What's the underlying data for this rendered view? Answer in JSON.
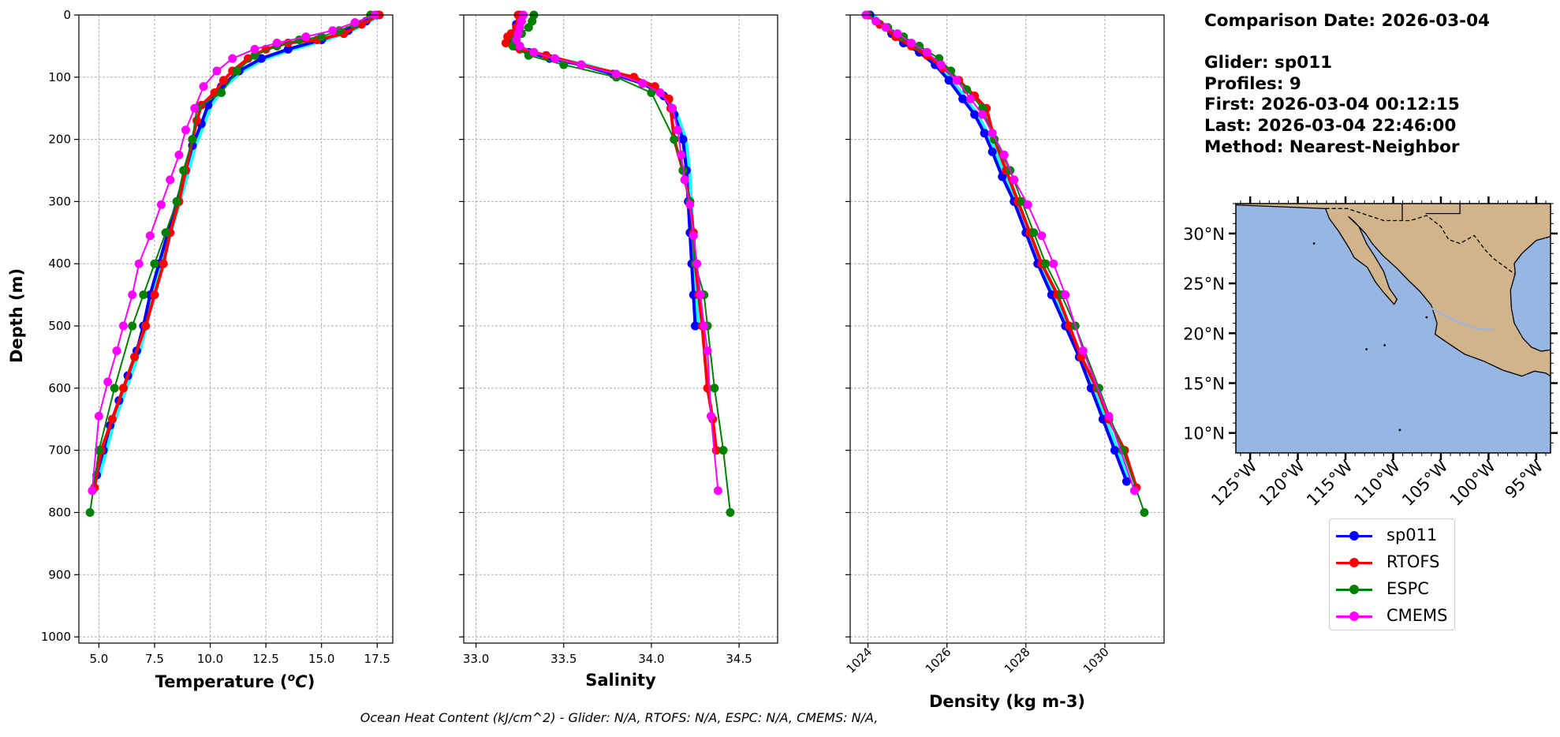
{
  "info": {
    "comparison_date": "Comparison Date: 2026-03-04",
    "glider": "Glider: sp011",
    "profiles": "Profiles: 9",
    "first": "First: 2026-03-04 00:12:15",
    "last": "Last: 2026-03-04 22:46:00",
    "method": "Method: Nearest-Neighbor"
  },
  "footer": "Ocean Heat Content (kJ/cm^2) - Glider: N/A,  RTOFS: N/A,  ESPC: N/A,  CMEMS: N/A,",
  "legend": [
    {
      "name": "sp011",
      "color": "#0000ff"
    },
    {
      "name": "RTOFS",
      "color": "#ff0000"
    },
    {
      "name": "ESPC",
      "color": "#008000"
    },
    {
      "name": "CMEMS",
      "color": "#ff00ff"
    }
  ],
  "map": {
    "ocean_color": "#97b6e1",
    "land_color": "#d2b48c",
    "lat_labels": [
      "30°N",
      "25°N",
      "20°N",
      "15°N",
      "10°N"
    ],
    "lat_values": [
      30,
      25,
      20,
      15,
      10
    ],
    "lon_labels": [
      "125°W",
      "120°W",
      "115°W",
      "110°W",
      "105°W",
      "100°W",
      "95°W"
    ],
    "lon_values": [
      -125,
      -120,
      -115,
      -110,
      -105,
      -100,
      -95
    ],
    "extent": {
      "lon_min": -126.5,
      "lon_max": -93.5,
      "lat_min": 8,
      "lat_max": 33
    }
  },
  "chart_data": [
    {
      "type": "line",
      "id": "temperature",
      "xlabel": "Temperature (°C)",
      "ylabel": "Depth (m)",
      "xlim": [
        4.1,
        18.2
      ],
      "ylim": [
        1010,
        0
      ],
      "xticks": [
        "5.0",
        "7.5",
        "10.0",
        "12.5",
        "15.0",
        "17.5"
      ],
      "xtick_values": [
        5.0,
        7.5,
        10.0,
        12.5,
        15.0,
        17.5
      ],
      "yticks": [
        "0",
        "100",
        "200",
        "300",
        "400",
        "500",
        "600",
        "700",
        "800",
        "900",
        "1000"
      ],
      "ytick_values": [
        0,
        100,
        200,
        300,
        400,
        500,
        600,
        700,
        800,
        900,
        1000
      ],
      "grid": true,
      "series": [
        {
          "name": "sp011",
          "color": "#0000ff",
          "x": [
            17.5,
            17.0,
            16.2,
            15.0,
            13.5,
            12.3,
            11.3,
            10.5,
            9.9,
            9.6,
            9.2,
            8.9,
            8.5,
            8.1,
            7.7,
            7.3,
            7.0,
            6.7,
            6.3,
            5.9,
            5.5,
            5.2,
            4.9
          ],
          "y": [
            0,
            10,
            25,
            40,
            55,
            70,
            90,
            115,
            145,
            175,
            210,
            250,
            300,
            350,
            400,
            450,
            500,
            540,
            580,
            620,
            660,
            700,
            740
          ]
        },
        {
          "name": "RTOFS",
          "color": "#ff0000",
          "x": [
            17.6,
            16.8,
            16.0,
            14.8,
            13.5,
            12.5,
            11.7,
            11.0,
            10.6,
            10.2,
            9.6,
            9.4,
            9.2,
            8.9,
            8.6,
            8.2,
            7.9,
            7.5,
            7.1,
            6.6,
            6.1,
            5.6,
            5.1,
            4.8
          ],
          "y": [
            0,
            15,
            30,
            40,
            45,
            55,
            70,
            90,
            105,
            125,
            145,
            170,
            200,
            250,
            300,
            350,
            400,
            450,
            500,
            550,
            600,
            650,
            700,
            760
          ]
        },
        {
          "name": "ESPC",
          "color": "#008000",
          "x": [
            17.2,
            16.5,
            15.8,
            15.0,
            14.0,
            13.0,
            12.0,
            11.2,
            10.5,
            9.4,
            9.2,
            8.8,
            8.5,
            8.0,
            7.5,
            7.0,
            6.5,
            5.7,
            5.0,
            4.6
          ],
          "y": [
            0,
            15,
            25,
            35,
            40,
            50,
            65,
            90,
            125,
            150,
            200,
            250,
            300,
            350,
            400,
            450,
            500,
            600,
            700,
            800
          ]
        },
        {
          "name": "CMEMS",
          "color": "#ff00ff",
          "x": [
            17.4,
            16.5,
            15.5,
            14.3,
            13.0,
            12.0,
            11.0,
            10.3,
            9.7,
            9.3,
            8.9,
            8.6,
            8.2,
            7.8,
            7.3,
            6.8,
            6.5,
            6.1,
            5.8,
            5.4,
            5.0,
            4.7
          ],
          "y": [
            0,
            12,
            25,
            35,
            45,
            55,
            70,
            90,
            115,
            150,
            185,
            225,
            265,
            305,
            355,
            400,
            450,
            500,
            540,
            590,
            645,
            765
          ]
        }
      ]
    },
    {
      "type": "line",
      "id": "salinity",
      "xlabel": "Salinity",
      "xlim": [
        32.93,
        34.72
      ],
      "ylim": [
        1010,
        0
      ],
      "xticks": [
        "33.0",
        "33.5",
        "34.0",
        "34.5"
      ],
      "xtick_values": [
        33.0,
        33.5,
        34.0,
        34.5
      ],
      "grid": true,
      "series": [
        {
          "name": "sp011",
          "color": "#0000ff",
          "x": [
            33.25,
            33.23,
            33.21,
            33.2,
            33.22,
            33.3,
            33.42,
            33.6,
            33.78,
            33.95,
            34.07,
            34.13,
            34.18,
            34.2,
            34.21,
            34.22,
            34.23,
            34.24,
            34.25
          ],
          "y": [
            0,
            15,
            30,
            40,
            50,
            60,
            70,
            80,
            95,
            110,
            130,
            160,
            200,
            250,
            300,
            350,
            400,
            450,
            500
          ]
        },
        {
          "name": "RTOFS",
          "color": "#ff0000",
          "x": [
            33.24,
            33.23,
            33.2,
            33.18,
            33.17,
            33.25,
            33.4,
            33.6,
            33.9,
            34.02,
            34.1,
            34.11,
            34.13,
            34.18,
            34.22,
            34.24,
            34.25,
            34.27,
            34.29,
            34.32,
            34.35,
            34.37
          ],
          "y": [
            0,
            20,
            30,
            35,
            45,
            55,
            65,
            80,
            100,
            115,
            135,
            150,
            200,
            250,
            300,
            350,
            400,
            450,
            500,
            600,
            650,
            700
          ]
        },
        {
          "name": "ESPC",
          "color": "#008000",
          "x": [
            33.33,
            33.32,
            33.3,
            33.26,
            33.22,
            33.21,
            33.3,
            33.5,
            33.8,
            34.0,
            34.13,
            34.18,
            34.22,
            34.25,
            34.3,
            34.32,
            34.36,
            34.41,
            34.45
          ],
          "y": [
            0,
            10,
            20,
            30,
            40,
            50,
            65,
            80,
            100,
            125,
            200,
            250,
            300,
            400,
            450,
            500,
            600,
            700,
            800
          ]
        },
        {
          "name": "CMEMS",
          "color": "#ff00ff",
          "x": [
            33.27,
            33.26,
            33.25,
            33.24,
            33.23,
            33.25,
            33.33,
            33.45,
            33.6,
            33.8,
            33.95,
            34.05,
            34.12,
            34.15,
            34.17,
            34.19,
            34.22,
            34.24,
            34.26,
            34.28,
            34.3,
            34.32,
            34.34,
            34.38
          ],
          "y": [
            0,
            10,
            20,
            30,
            40,
            50,
            60,
            70,
            80,
            95,
            110,
            125,
            150,
            185,
            225,
            265,
            305,
            355,
            400,
            450,
            500,
            540,
            645,
            765
          ]
        }
      ]
    },
    {
      "type": "line",
      "id": "density",
      "xlabel": "Density (kg m-3)",
      "xlim": [
        1023.55,
        1031.5
      ],
      "ylim": [
        1010,
        0
      ],
      "xticks": [
        "1024",
        "1026",
        "1028",
        "1030"
      ],
      "xtick_values": [
        1024,
        1026,
        1028,
        1030
      ],
      "grid": true,
      "series": [
        {
          "name": "sp011",
          "color": "#0000ff",
          "x": [
            1024.05,
            1024.3,
            1024.6,
            1024.9,
            1025.3,
            1025.7,
            1026.05,
            1026.4,
            1026.7,
            1026.95,
            1027.15,
            1027.4,
            1027.7,
            1028.0,
            1028.3,
            1028.65,
            1029.0,
            1029.35,
            1029.65,
            1029.95,
            1030.25,
            1030.55
          ],
          "y": [
            0,
            15,
            30,
            45,
            60,
            80,
            105,
            135,
            160,
            190,
            220,
            260,
            300,
            350,
            400,
            450,
            500,
            550,
            600,
            650,
            700,
            750
          ]
        },
        {
          "name": "RTOFS",
          "color": "#ff0000",
          "x": [
            1024.0,
            1024.3,
            1024.7,
            1025.1,
            1025.5,
            1025.9,
            1026.3,
            1026.7,
            1027.0,
            1027.2,
            1027.5,
            1027.8,
            1028.1,
            1028.4,
            1028.8,
            1029.1,
            1029.4,
            1029.8,
            1030.1,
            1030.5,
            1030.8
          ],
          "y": [
            0,
            15,
            35,
            50,
            65,
            85,
            105,
            130,
            150,
            200,
            250,
            300,
            350,
            400,
            450,
            500,
            550,
            600,
            650,
            700,
            760
          ]
        },
        {
          "name": "ESPC",
          "color": "#008000",
          "x": [
            1024.0,
            1024.5,
            1024.9,
            1025.3,
            1025.8,
            1026.1,
            1026.5,
            1026.9,
            1027.2,
            1027.6,
            1027.9,
            1028.2,
            1028.5,
            1028.9,
            1029.25,
            1029.85,
            1030.45,
            1031.0
          ],
          "y": [
            0,
            20,
            35,
            50,
            70,
            90,
            120,
            150,
            200,
            250,
            300,
            350,
            400,
            450,
            500,
            600,
            700,
            800
          ]
        },
        {
          "name": "CMEMS",
          "color": "#ff00ff",
          "x": [
            1023.95,
            1024.2,
            1024.45,
            1024.75,
            1025.1,
            1025.5,
            1025.85,
            1026.25,
            1026.6,
            1026.9,
            1027.15,
            1027.45,
            1027.7,
            1028.05,
            1028.4,
            1028.7,
            1029.0,
            1029.45,
            1030.1,
            1030.75
          ],
          "y": [
            0,
            10,
            20,
            30,
            45,
            60,
            80,
            105,
            135,
            160,
            190,
            225,
            265,
            305,
            355,
            400,
            450,
            540,
            645,
            765
          ]
        }
      ]
    }
  ]
}
